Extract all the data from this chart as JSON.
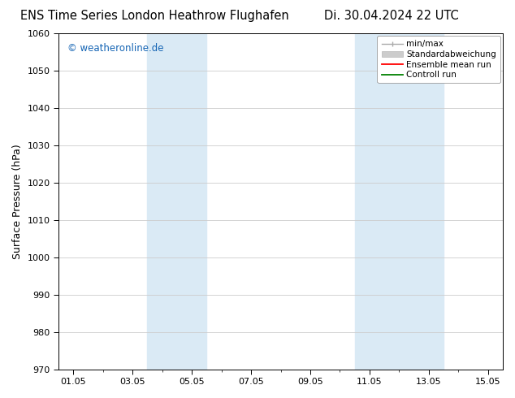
{
  "title_left": "ENS Time Series London Heathrow Flughafen",
  "title_right": "Di. 30.04.2024 22 UTC",
  "ylabel": "Surface Pressure (hPa)",
  "ylim": [
    970,
    1060
  ],
  "yticks": [
    970,
    980,
    990,
    1000,
    1010,
    1020,
    1030,
    1040,
    1050,
    1060
  ],
  "xlabel_ticks": [
    "01.05",
    "03.05",
    "05.05",
    "07.05",
    "09.05",
    "11.05",
    "13.05",
    "15.05"
  ],
  "xlabel_values": [
    1,
    3,
    5,
    7,
    9,
    11,
    13,
    15
  ],
  "xlim": [
    0.5,
    15.5
  ],
  "shaded_regions": [
    {
      "x_start": 3.5,
      "x_end": 5.5,
      "color": "#daeaf5"
    },
    {
      "x_start": 10.5,
      "x_end": 13.5,
      "color": "#daeaf5"
    }
  ],
  "watermark_text": "© weatheronline.de",
  "watermark_color": "#1464b4",
  "legend_entries": [
    {
      "label": "min/max",
      "color": "#aaaaaa"
    },
    {
      "label": "Standardabweichung",
      "color": "#cccccc"
    },
    {
      "label": "Ensemble mean run",
      "color": "red"
    },
    {
      "label": "Controll run",
      "color": "green"
    }
  ],
  "bg_color": "#ffffff",
  "grid_color": "#cccccc",
  "title_fontsize": 10.5,
  "axis_fontsize": 9,
  "tick_fontsize": 8,
  "watermark_fontsize": 8.5
}
